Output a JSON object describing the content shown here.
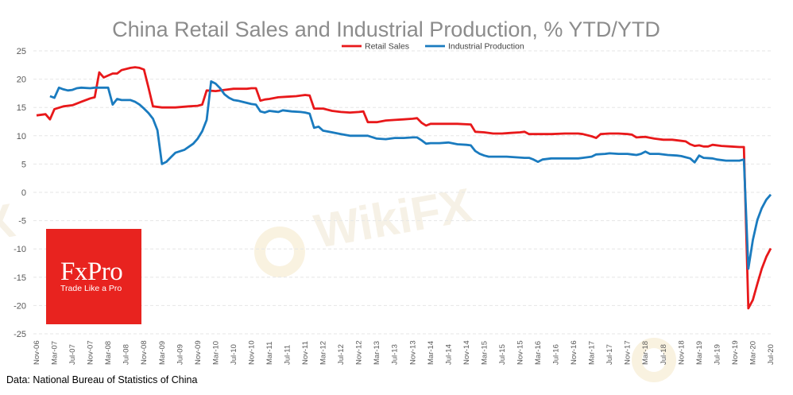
{
  "chart_data": {
    "type": "line",
    "title": "China Retail Sales and Industrial Production, % YTD/YTD",
    "xlabel": "",
    "ylabel": "",
    "ylim": [
      -25,
      25
    ],
    "yticks": [
      25,
      20,
      15,
      10,
      5,
      0,
      -5,
      -10,
      -15,
      -20,
      -25
    ],
    "grid": true,
    "legend_position": "top-center",
    "x_tick_labels": [
      "Nov-06",
      "Mar-07",
      "Jul-07",
      "Nov-07",
      "Mar-08",
      "Jul-08",
      "Nov-08",
      "Mar-09",
      "Jul-09",
      "Nov-09",
      "Mar-10",
      "Jul-10",
      "Nov-10",
      "Mar-11",
      "Jul-11",
      "Nov-11",
      "Mar-12",
      "Jul-12",
      "Nov-12",
      "Mar-13",
      "Jul-13",
      "Nov-13",
      "Mar-14",
      "Jul-14",
      "Nov-14",
      "Mar-15",
      "Jul-15",
      "Nov-15",
      "Mar-16",
      "Jul-16",
      "Nov-16",
      "Mar-17",
      "Jul-17",
      "Nov-17",
      "Mar-18",
      "Jul-18",
      "Nov-18",
      "Mar-19",
      "Jul-19",
      "Nov-19",
      "Mar-20",
      "Jul-20"
    ],
    "series": [
      {
        "name": "Retail Sales",
        "color": "#e8181a",
        "points": [
          [
            "2006-11",
            13.6
          ],
          [
            "2007-01",
            13.8
          ],
          [
            "2007-02",
            12.9
          ],
          [
            "2007-03",
            14.7
          ],
          [
            "2007-05",
            15.2
          ],
          [
            "2007-07",
            15.4
          ],
          [
            "2007-09",
            16.0
          ],
          [
            "2007-11",
            16.6
          ],
          [
            "2007-12",
            16.8
          ],
          [
            "2008-01",
            21.2
          ],
          [
            "2008-02",
            20.3
          ],
          [
            "2008-04",
            21.0
          ],
          [
            "2008-05",
            21.0
          ],
          [
            "2008-06",
            21.6
          ],
          [
            "2008-08",
            22.0
          ],
          [
            "2008-09",
            22.1
          ],
          [
            "2008-10",
            22.0
          ],
          [
            "2008-11",
            21.7
          ],
          [
            "2008-12",
            18.5
          ],
          [
            "2009-01",
            15.2
          ],
          [
            "2009-03",
            15.0
          ],
          [
            "2009-06",
            15.0
          ],
          [
            "2009-09",
            15.2
          ],
          [
            "2009-11",
            15.3
          ],
          [
            "2009-12",
            15.5
          ],
          [
            "2010-01",
            18.0
          ],
          [
            "2010-03",
            17.9
          ],
          [
            "2010-05",
            18.1
          ],
          [
            "2010-07",
            18.3
          ],
          [
            "2010-10",
            18.3
          ],
          [
            "2010-11",
            18.4
          ],
          [
            "2010-12",
            18.4
          ],
          [
            "2011-01",
            16.2
          ],
          [
            "2011-02",
            16.4
          ],
          [
            "2011-03",
            16.5
          ],
          [
            "2011-05",
            16.8
          ],
          [
            "2011-07",
            16.9
          ],
          [
            "2011-09",
            17.0
          ],
          [
            "2011-11",
            17.2
          ],
          [
            "2011-12",
            17.1
          ],
          [
            "2012-01",
            14.8
          ],
          [
            "2012-03",
            14.8
          ],
          [
            "2012-05",
            14.4
          ],
          [
            "2012-07",
            14.2
          ],
          [
            "2012-09",
            14.1
          ],
          [
            "2012-11",
            14.2
          ],
          [
            "2012-12",
            14.3
          ],
          [
            "2013-01",
            12.4
          ],
          [
            "2013-03",
            12.4
          ],
          [
            "2013-05",
            12.7
          ],
          [
            "2013-07",
            12.8
          ],
          [
            "2013-09",
            12.9
          ],
          [
            "2013-11",
            13.0
          ],
          [
            "2013-12",
            13.1
          ],
          [
            "2014-01",
            12.3
          ],
          [
            "2014-02",
            11.8
          ],
          [
            "2014-03",
            12.1
          ],
          [
            "2014-06",
            12.1
          ],
          [
            "2014-09",
            12.1
          ],
          [
            "2014-12",
            12.0
          ],
          [
            "2015-01",
            10.7
          ],
          [
            "2015-03",
            10.6
          ],
          [
            "2015-05",
            10.4
          ],
          [
            "2015-07",
            10.4
          ],
          [
            "2015-09",
            10.5
          ],
          [
            "2015-11",
            10.6
          ],
          [
            "2015-12",
            10.7
          ],
          [
            "2016-01",
            10.3
          ],
          [
            "2016-03",
            10.3
          ],
          [
            "2016-06",
            10.3
          ],
          [
            "2016-09",
            10.4
          ],
          [
            "2016-11",
            10.4
          ],
          [
            "2016-12",
            10.4
          ],
          [
            "2017-01",
            10.3
          ],
          [
            "2017-03",
            9.9
          ],
          [
            "2017-04",
            9.6
          ],
          [
            "2017-05",
            10.3
          ],
          [
            "2017-07",
            10.4
          ],
          [
            "2017-09",
            10.4
          ],
          [
            "2017-11",
            10.3
          ],
          [
            "2017-12",
            10.2
          ],
          [
            "2018-01",
            9.7
          ],
          [
            "2018-03",
            9.8
          ],
          [
            "2018-05",
            9.5
          ],
          [
            "2018-07",
            9.3
          ],
          [
            "2018-09",
            9.3
          ],
          [
            "2018-11",
            9.1
          ],
          [
            "2018-12",
            9.0
          ],
          [
            "2019-01",
            8.5
          ],
          [
            "2019-02",
            8.2
          ],
          [
            "2019-03",
            8.3
          ],
          [
            "2019-04",
            8.1
          ],
          [
            "2019-05",
            8.1
          ],
          [
            "2019-06",
            8.4
          ],
          [
            "2019-08",
            8.2
          ],
          [
            "2019-10",
            8.1
          ],
          [
            "2019-12",
            8.0
          ],
          [
            "2020-01",
            8.0
          ],
          [
            "2020-02",
            -20.5
          ],
          [
            "2020-03",
            -19.0
          ],
          [
            "2020-04",
            -16.2
          ],
          [
            "2020-05",
            -13.5
          ],
          [
            "2020-06",
            -11.4
          ],
          [
            "2020-07",
            -9.9
          ]
        ]
      },
      {
        "name": "Industrial Production",
        "color": "#1a7bbf",
        "points": [
          [
            "2007-02",
            17.0
          ],
          [
            "2007-03",
            16.7
          ],
          [
            "2007-04",
            18.5
          ],
          [
            "2007-05",
            18.2
          ],
          [
            "2007-06",
            18.0
          ],
          [
            "2007-07",
            18.1
          ],
          [
            "2007-08",
            18.4
          ],
          [
            "2007-09",
            18.5
          ],
          [
            "2007-11",
            18.4
          ],
          [
            "2007-12",
            18.5
          ],
          [
            "2008-01",
            18.5
          ],
          [
            "2008-02",
            18.5
          ],
          [
            "2008-03",
            18.5
          ],
          [
            "2008-04",
            15.5
          ],
          [
            "2008-05",
            16.5
          ],
          [
            "2008-06",
            16.3
          ],
          [
            "2008-08",
            16.3
          ],
          [
            "2008-09",
            16.0
          ],
          [
            "2008-10",
            15.5
          ],
          [
            "2008-11",
            14.8
          ],
          [
            "2008-12",
            14.0
          ],
          [
            "2009-01",
            13.0
          ],
          [
            "2009-02",
            11.0
          ],
          [
            "2009-03",
            5.0
          ],
          [
            "2009-04",
            5.4
          ],
          [
            "2009-05",
            6.2
          ],
          [
            "2009-06",
            7.0
          ],
          [
            "2009-08",
            7.5
          ],
          [
            "2009-10",
            8.6
          ],
          [
            "2009-11",
            9.5
          ],
          [
            "2009-12",
            10.8
          ],
          [
            "2010-01",
            12.8
          ],
          [
            "2010-02",
            19.6
          ],
          [
            "2010-03",
            19.2
          ],
          [
            "2010-04",
            18.4
          ],
          [
            "2010-05",
            17.3
          ],
          [
            "2010-06",
            16.7
          ],
          [
            "2010-07",
            16.3
          ],
          [
            "2010-08",
            16.2
          ],
          [
            "2010-09",
            16.0
          ],
          [
            "2010-10",
            15.8
          ],
          [
            "2010-11",
            15.6
          ],
          [
            "2010-12",
            15.5
          ],
          [
            "2011-01",
            14.3
          ],
          [
            "2011-02",
            14.1
          ],
          [
            "2011-03",
            14.4
          ],
          [
            "2011-04",
            14.3
          ],
          [
            "2011-05",
            14.2
          ],
          [
            "2011-06",
            14.5
          ],
          [
            "2011-08",
            14.3
          ],
          [
            "2011-10",
            14.2
          ],
          [
            "2011-11",
            14.1
          ],
          [
            "2011-12",
            13.9
          ],
          [
            "2012-01",
            11.4
          ],
          [
            "2012-02",
            11.6
          ],
          [
            "2012-03",
            10.9
          ],
          [
            "2012-05",
            10.6
          ],
          [
            "2012-07",
            10.3
          ],
          [
            "2012-09",
            10.0
          ],
          [
            "2012-12",
            10.0
          ],
          [
            "2013-01",
            10.0
          ],
          [
            "2013-03",
            9.5
          ],
          [
            "2013-05",
            9.4
          ],
          [
            "2013-07",
            9.6
          ],
          [
            "2013-09",
            9.6
          ],
          [
            "2013-11",
            9.7
          ],
          [
            "2013-12",
            9.7
          ],
          [
            "2014-01",
            9.2
          ],
          [
            "2014-02",
            8.6
          ],
          [
            "2014-03",
            8.7
          ],
          [
            "2014-05",
            8.7
          ],
          [
            "2014-07",
            8.8
          ],
          [
            "2014-09",
            8.5
          ],
          [
            "2014-11",
            8.4
          ],
          [
            "2014-12",
            8.3
          ],
          [
            "2015-01",
            7.3
          ],
          [
            "2015-02",
            6.8
          ],
          [
            "2015-03",
            6.5
          ],
          [
            "2015-04",
            6.3
          ],
          [
            "2015-06",
            6.3
          ],
          [
            "2015-08",
            6.3
          ],
          [
            "2015-10",
            6.2
          ],
          [
            "2015-12",
            6.1
          ],
          [
            "2016-01",
            6.1
          ],
          [
            "2016-02",
            5.8
          ],
          [
            "2016-03",
            5.4
          ],
          [
            "2016-04",
            5.8
          ],
          [
            "2016-06",
            6.0
          ],
          [
            "2016-09",
            6.0
          ],
          [
            "2016-12",
            6.0
          ],
          [
            "2017-01",
            6.1
          ],
          [
            "2017-03",
            6.3
          ],
          [
            "2017-04",
            6.7
          ],
          [
            "2017-06",
            6.8
          ],
          [
            "2017-07",
            6.9
          ],
          [
            "2017-09",
            6.8
          ],
          [
            "2017-11",
            6.8
          ],
          [
            "2017-12",
            6.7
          ],
          [
            "2018-01",
            6.6
          ],
          [
            "2018-02",
            6.8
          ],
          [
            "2018-03",
            7.2
          ],
          [
            "2018-04",
            6.8
          ],
          [
            "2018-06",
            6.8
          ],
          [
            "2018-08",
            6.6
          ],
          [
            "2018-10",
            6.5
          ],
          [
            "2018-11",
            6.4
          ],
          [
            "2018-12",
            6.2
          ],
          [
            "2019-01",
            6.0
          ],
          [
            "2019-02",
            5.3
          ],
          [
            "2019-03",
            6.5
          ],
          [
            "2019-04",
            6.1
          ],
          [
            "2019-06",
            6.0
          ],
          [
            "2019-07",
            5.8
          ],
          [
            "2019-09",
            5.6
          ],
          [
            "2019-11",
            5.6
          ],
          [
            "2019-12",
            5.6
          ],
          [
            "2020-01",
            5.8
          ],
          [
            "2020-02",
            -13.5
          ],
          [
            "2020-03",
            -8.4
          ],
          [
            "2020-04",
            -4.9
          ],
          [
            "2020-05",
            -2.8
          ],
          [
            "2020-06",
            -1.3
          ],
          [
            "2020-07",
            -0.4
          ]
        ]
      }
    ]
  },
  "source_note": "Data: National Bureau of Statistics of China",
  "logo": {
    "main": "FxPro",
    "tagline": "Trade Like a Pro",
    "color": "#e8231f"
  },
  "watermark": {
    "text": "WikiFX"
  }
}
